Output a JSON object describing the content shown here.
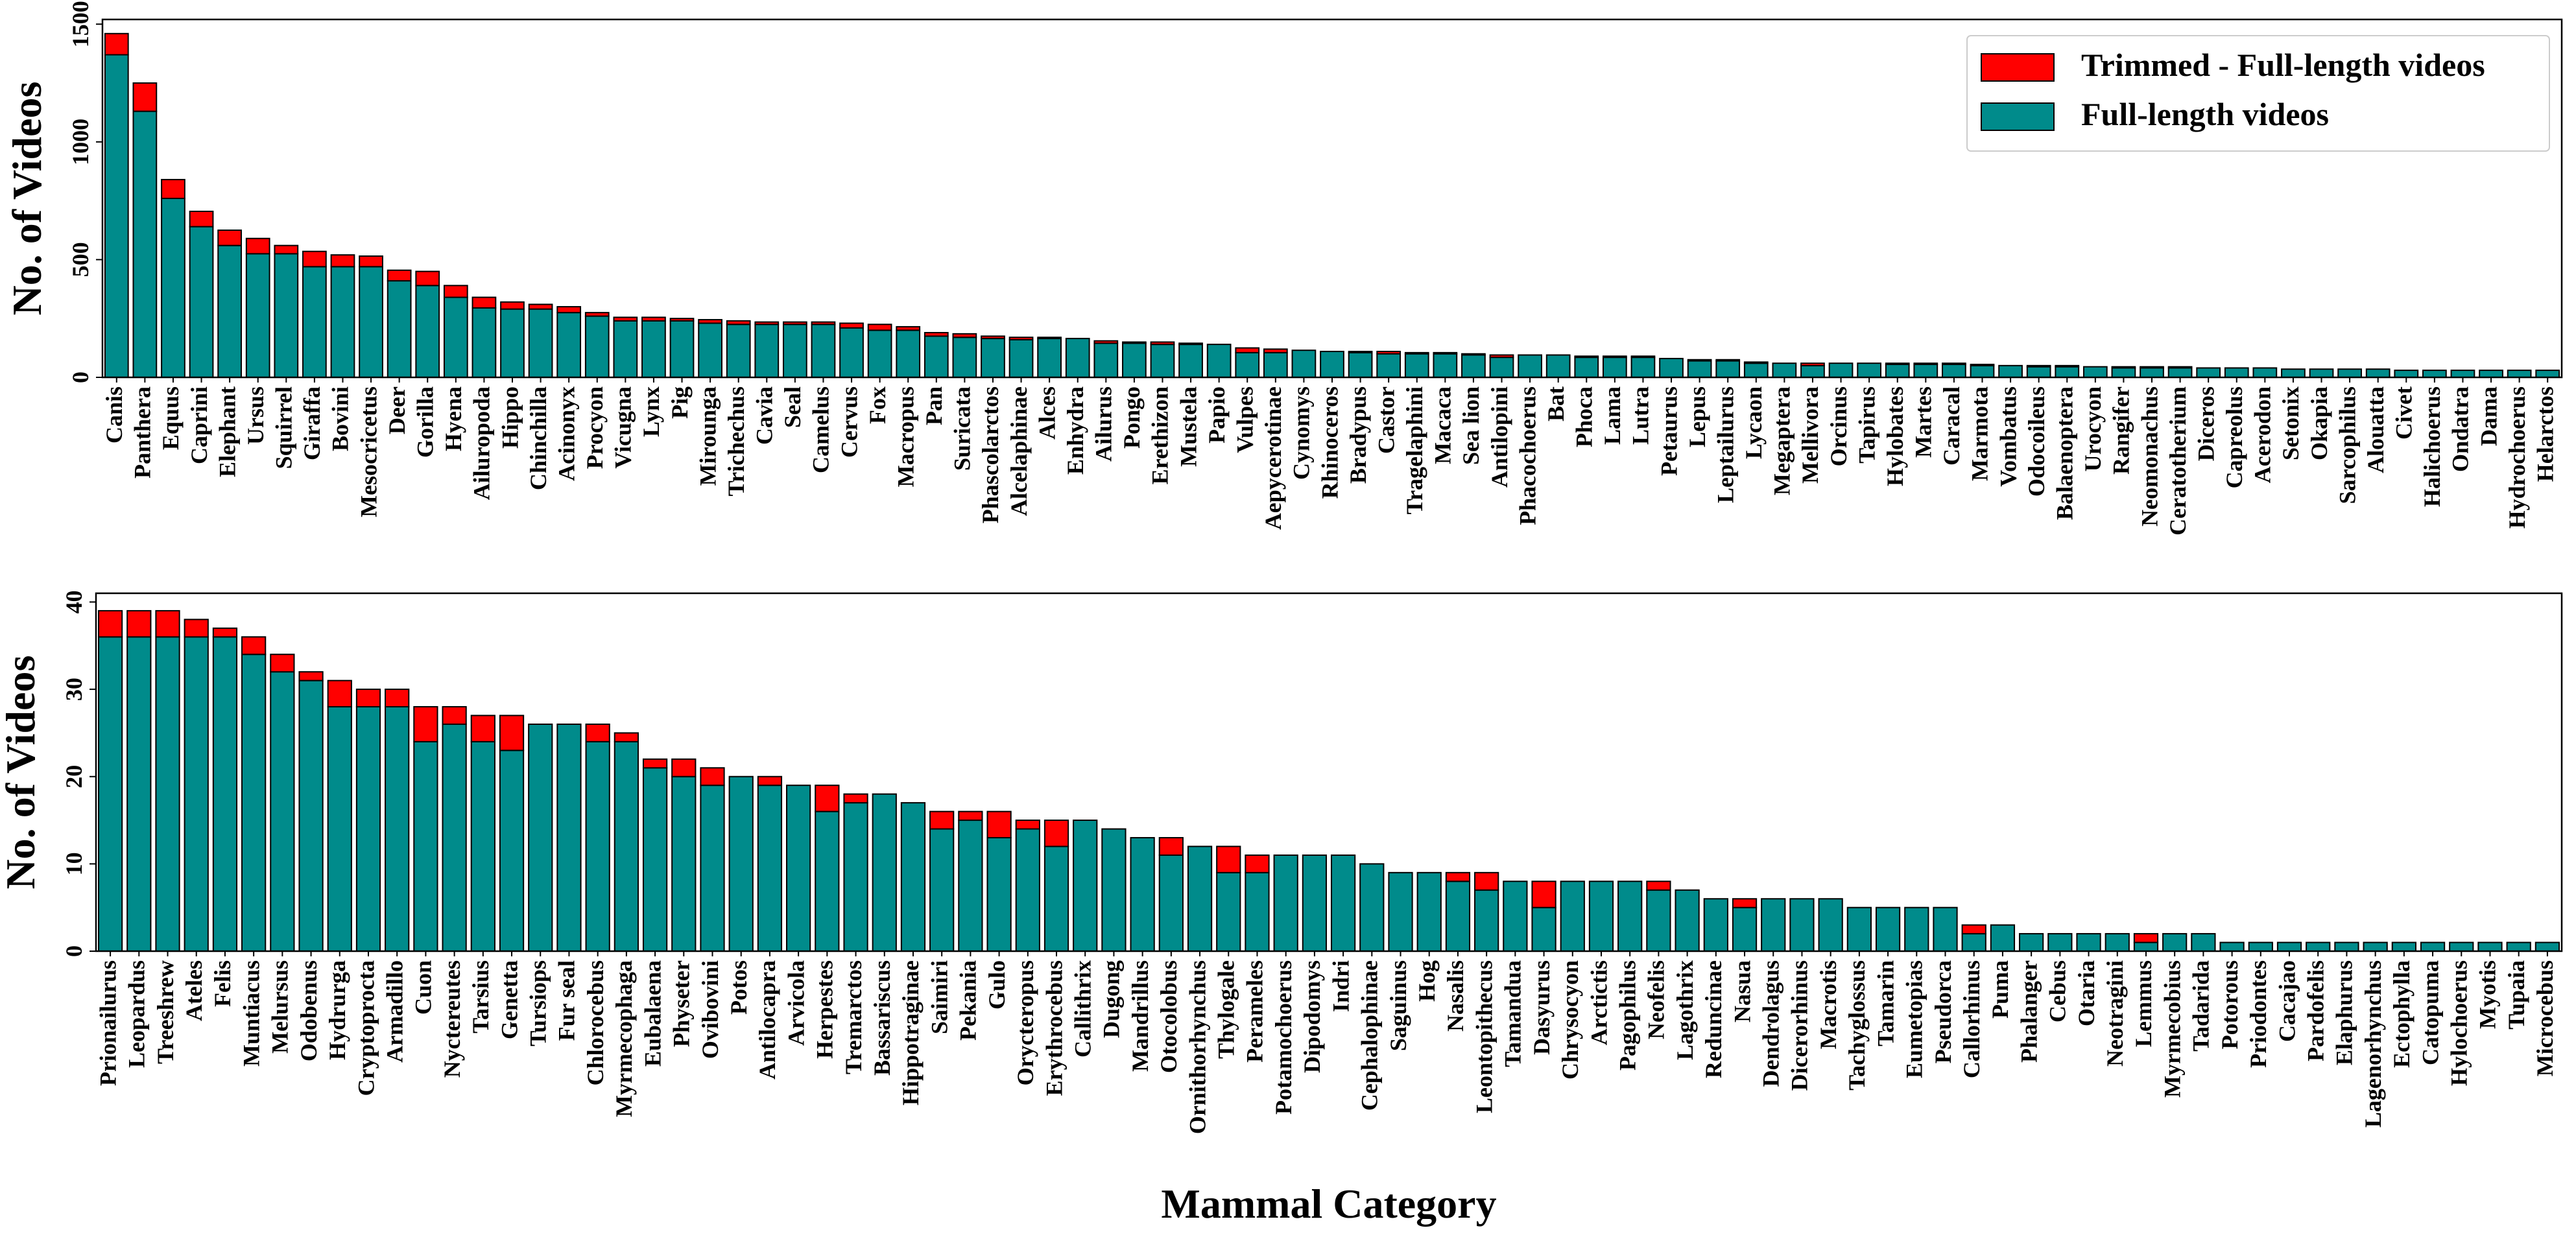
{
  "colors": {
    "full": "#008B8B",
    "trimmed": "#FF0000",
    "edge": "#000000",
    "background": "#ffffff"
  },
  "chart_data": [
    {
      "type": "bar",
      "stacked": true,
      "ylabel": "No. of Videos",
      "xlabel": "",
      "ylim": [
        0,
        1520
      ],
      "yticks": [
        0,
        500,
        1000,
        1500
      ],
      "legend": {
        "position": "top-right",
        "entries": [
          "Trimmed - Full-length videos",
          "Full-length videos"
        ]
      },
      "categories": [
        "Canis",
        "Panthera",
        "Equus",
        "Caprini",
        "Elephant",
        "Ursus",
        "Squirrel",
        "Giraffa",
        "Bovini",
        "Mesocricetus",
        "Deer",
        "Gorilla",
        "Hyena",
        "Ailuropoda",
        "Hippo",
        "Chinchilla",
        "Acinonyx",
        "Procyon",
        "Vicugna",
        "Lynx",
        "Pig",
        "Mirounga",
        "Trichechus",
        "Cavia",
        "Seal",
        "Camelus",
        "Cervus",
        "Fox",
        "Macropus",
        "Pan",
        "Suricata",
        "Phascolarctos",
        "Alcelaphinae",
        "Alces",
        "Enhydra",
        "Ailurus",
        "Pongo",
        "Erethizon",
        "Mustela",
        "Papio",
        "Vulpes",
        "Aepycerotinae",
        "Cynomys",
        "Rhinoceros",
        "Bradypus",
        "Castor",
        "Tragelaphini",
        "Macaca",
        "Sea lion",
        "Antilopini",
        "Phacochoerus",
        "Bat",
        "Phoca",
        "Lama",
        "Lutra",
        "Petaurus",
        "Lepus",
        "Leptailurus",
        "Lycaon",
        "Megaptera",
        "Mellivora",
        "Orcinus",
        "Tapirus",
        "Hylobates",
        "Martes",
        "Caracal",
        "Marmota",
        "Vombatus",
        "Odocoileus",
        "Balaenoptera",
        "Urocyon",
        "Rangifer",
        "Neomonachus",
        "Ceratotherium",
        "Diceros",
        "Capreolus",
        "Acerodon",
        "Setonix",
        "Okapia",
        "Sarcophilus",
        "Alouatta",
        "Civet",
        "Halichoerus",
        "Ondatra",
        "Dama",
        "Hydrochoerus",
        "Helarctos"
      ],
      "series": [
        {
          "name": "Full-length videos",
          "values": [
            1370,
            1130,
            760,
            640,
            560,
            525,
            525,
            470,
            470,
            470,
            410,
            390,
            340,
            295,
            290,
            290,
            275,
            260,
            240,
            240,
            240,
            230,
            225,
            225,
            225,
            225,
            210,
            200,
            200,
            175,
            170,
            165,
            160,
            165,
            165,
            145,
            145,
            140,
            140,
            140,
            105,
            105,
            115,
            110,
            105,
            100,
            100,
            100,
            95,
            85,
            95,
            95,
            85,
            85,
            85,
            80,
            70,
            70,
            60,
            60,
            50,
            60,
            60,
            55,
            55,
            55,
            50,
            50,
            45,
            45,
            45,
            40,
            40,
            40,
            40,
            40,
            40,
            35,
            35,
            35,
            35,
            30,
            30,
            30,
            30,
            30,
            30
          ]
        },
        {
          "name": "Trimmed - Full-length videos",
          "values": [
            90,
            120,
            80,
            65,
            65,
            65,
            35,
            65,
            50,
            45,
            45,
            60,
            50,
            45,
            30,
            20,
            25,
            15,
            15,
            15,
            10,
            15,
            15,
            10,
            10,
            10,
            20,
            25,
            15,
            15,
            15,
            10,
            10,
            5,
            0,
            10,
            5,
            10,
            5,
            0,
            20,
            15,
            0,
            0,
            5,
            10,
            5,
            5,
            5,
            10,
            0,
            0,
            5,
            5,
            5,
            0,
            5,
            5,
            5,
            0,
            10,
            0,
            0,
            5,
            5,
            5,
            5,
            0,
            5,
            5,
            0,
            5,
            5,
            5,
            0,
            0,
            0,
            0,
            0,
            0,
            0,
            0,
            0,
            0,
            0,
            0,
            0
          ]
        }
      ]
    },
    {
      "type": "bar",
      "stacked": true,
      "ylabel": "No. of Videos",
      "xlabel": "Mammal Category",
      "ylim": [
        0,
        41
      ],
      "yticks": [
        0,
        10,
        20,
        30,
        40
      ],
      "categories": [
        "Prionailurus",
        "Leopardus",
        "Treeshrew",
        "Ateles",
        "Felis",
        "Muntiacus",
        "Melursus",
        "Odobenus",
        "Hydrurga",
        "Cryptoprocta",
        "Armadillo",
        "Cuon",
        "Nyctereutes",
        "Tarsius",
        "Genetta",
        "Tursiops",
        "Fur seal",
        "Chlorocebus",
        "Myrmecophaga",
        "Eubalaena",
        "Physeter",
        "Ovibovini",
        "Potos",
        "Antilocapra",
        "Arvicola",
        "Herpestes",
        "Tremarctos",
        "Bassariscus",
        "Hippotraginae",
        "Saimiri",
        "Pekania",
        "Gulo",
        "Orycteropus",
        "Erythrocebus",
        "Callithrix",
        "Dugong",
        "Mandrillus",
        "Otocolobus",
        "Ornithorhynchus",
        "Thylogale",
        "Perameles",
        "Potamochoerus",
        "Dipodomys",
        "Indri",
        "Cephalophinae",
        "Saguinus",
        "Hog",
        "Nasalis",
        "Leontopithecus",
        "Tamandua",
        "Dasyurus",
        "Chrysocyon",
        "Arctictis",
        "Pagophilus",
        "Neofelis",
        "Lagothrix",
        "Reduncinae",
        "Nasua",
        "Dendrolagus",
        "Dicerorhinus",
        "Macrotis",
        "Tachyglossus",
        "Tamarin",
        "Eumetopias",
        "Pseudorca",
        "Callorhinus",
        "Puma",
        "Phalanger",
        "Cebus",
        "Otaria",
        "Neotragini",
        "Lemmus",
        "Myrmecobius",
        "Tadarida",
        "Potorous",
        "Priodontes",
        "Cacajao",
        "Pardofelis",
        "Elaphurus",
        "Lagenorhynchus",
        "Ectophylla",
        "Catopuma",
        "Hylochoerus",
        "Myotis",
        "Tupaia",
        "Microcebus"
      ],
      "series": [
        {
          "name": "Full-length videos",
          "values": [
            36,
            36,
            36,
            36,
            36,
            34,
            32,
            31,
            28,
            28,
            28,
            24,
            26,
            24,
            23,
            26,
            26,
            24,
            24,
            21,
            20,
            19,
            20,
            19,
            19,
            16,
            17,
            18,
            17,
            14,
            15,
            13,
            14,
            12,
            15,
            14,
            13,
            11,
            12,
            9,
            9,
            11,
            11,
            11,
            10,
            9,
            9,
            8,
            7,
            8,
            5,
            8,
            8,
            8,
            7,
            7,
            6,
            5,
            6,
            6,
            6,
            5,
            5,
            5,
            5,
            2,
            3,
            2,
            2,
            2,
            2,
            1,
            2,
            2,
            1,
            1,
            1,
            1,
            1,
            1,
            1,
            1,
            1,
            1,
            1,
            1
          ]
        },
        {
          "name": "Trimmed - Full-length videos",
          "values": [
            3,
            3,
            3,
            2,
            1,
            2,
            2,
            1,
            3,
            2,
            2,
            4,
            2,
            3,
            4,
            0,
            0,
            2,
            1,
            1,
            2,
            2,
            0,
            1,
            0,
            3,
            1,
            0,
            0,
            2,
            1,
            3,
            1,
            3,
            0,
            0,
            0,
            2,
            0,
            3,
            2,
            0,
            0,
            0,
            0,
            0,
            0,
            1,
            2,
            0,
            3,
            0,
            0,
            0,
            1,
            0,
            0,
            1,
            0,
            0,
            0,
            0,
            0,
            0,
            0,
            1,
            0,
            0,
            0,
            0,
            0,
            1,
            0,
            0,
            0,
            0,
            0,
            0,
            0,
            0,
            0,
            0,
            0,
            0,
            0,
            0
          ]
        }
      ]
    }
  ]
}
